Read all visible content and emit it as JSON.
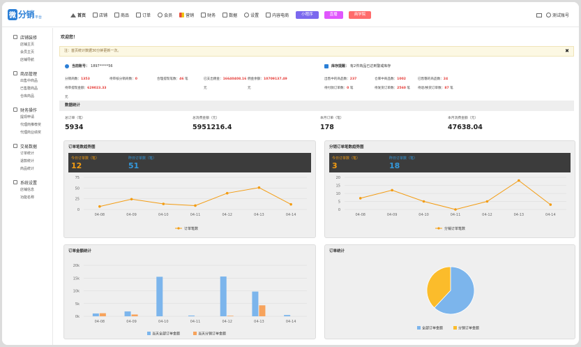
{
  "app": {
    "logo_badge": "微",
    "logo_text": "分销",
    "logo_sub": "平台"
  },
  "nav": {
    "items": [
      {
        "label": "首页",
        "icon": "home-icon",
        "active": true
      },
      {
        "label": "店铺",
        "icon": "store-icon"
      },
      {
        "label": "商品",
        "icon": "goods-icon"
      },
      {
        "label": "订单",
        "icon": "order-icon"
      },
      {
        "label": "会员",
        "icon": "member-icon"
      },
      {
        "label": "营销",
        "icon": "marketing-icon"
      },
      {
        "label": "财务",
        "icon": "finance-icon"
      },
      {
        "label": "数据",
        "icon": "data-icon"
      },
      {
        "label": "设置",
        "icon": "settings-icon"
      },
      {
        "label": "内容电商",
        "icon": "content-icon"
      }
    ],
    "pills": [
      {
        "label": "小程序",
        "color": "#7b68ee"
      },
      {
        "label": "直播",
        "color": "#e056fd"
      },
      {
        "label": "商学院",
        "color": "#ff6b6b"
      }
    ]
  },
  "header": {
    "account": "测试账号"
  },
  "sidebar": [
    {
      "title": "店铺装修",
      "icon": "brush-icon",
      "items": [
        "店铺主页",
        "会员主页",
        "店铺导航"
      ]
    },
    {
      "title": "商品管理",
      "icon": "goods-icon",
      "items": [
        "出售中商品",
        "已售罄商品",
        "仓库商品"
      ]
    },
    {
      "title": "财务操作",
      "icon": "wallet-icon",
      "items": [
        "提现申请",
        "代理商推荐奖",
        "代理商业绩奖"
      ]
    },
    {
      "title": "交易数据",
      "icon": "chart-icon",
      "items": [
        "订单统计",
        "退款统计",
        "商品统计"
      ]
    },
    {
      "title": "系统设置",
      "icon": "gear-icon",
      "items": [
        "店铺信息",
        "功能名称"
      ]
    }
  ],
  "main": {
    "welcome": "欢迎您！",
    "notice": "注：首页统计数据30分钟更新一次。",
    "account_label": "当前账号：",
    "account_value": "1897*****56",
    "stock_label": "库存提醒：",
    "stock_text": "有2件商品已达到警戒库存",
    "left_kv": [
      {
        "label": "分销商数：",
        "value": "1353"
      },
      {
        "label": "待审核分销商数：",
        "value": "0"
      },
      {
        "label": "合理提现笔数：",
        "value": "46",
        "suffix": " 笔"
      },
      {
        "label": "已支出佣金：",
        "value": "16640408.16"
      },
      {
        "label": "佣金余额：",
        "value": "10709137.49"
      },
      {
        "label": "待审提现金额：",
        "value": "629023.33"
      },
      {
        "label": "元",
        "value": ""
      },
      {
        "label": "元",
        "value": ""
      },
      {
        "label": "元",
        "value": ""
      }
    ],
    "right_kv": [
      {
        "label": "出售中的商品数：",
        "value": "237"
      },
      {
        "label": "仓库中商品数：",
        "value": "1002"
      },
      {
        "label": "已售罄的商品数：",
        "value": "24"
      },
      {
        "label": "待付款订单数：",
        "value": "0",
        "suffix": " 笔"
      },
      {
        "label": "待发货订单数：",
        "value": "2560",
        "suffix": " 笔"
      },
      {
        "label": "待退/换货订单数：",
        "value": "87",
        "suffix": " 笔"
      }
    ],
    "stats_title": "数据统计",
    "stats": [
      {
        "label": "总订单（笔）",
        "value": "5934"
      },
      {
        "label": "总消费金额（元）",
        "value": "5951216.4"
      },
      {
        "label": "本月订单（笔）",
        "value": "178"
      },
      {
        "label": "本月消费金额（元）",
        "value": "47638.04"
      }
    ]
  },
  "panels": {
    "orders_trend": {
      "title": "订单笔数趋势图",
      "today_label": "今日订单数（笔）",
      "today": "12",
      "yest_label": "昨日订单数（笔）",
      "yest": "51"
    },
    "dist_trend": {
      "title": "分销订单笔数趋势图",
      "today_label": "今日订单数（笔）",
      "today": "3",
      "yest_label": "昨日订单数（笔）",
      "yest": "18"
    },
    "amount": {
      "title": "订单金额统计"
    },
    "order_stats": {
      "title": "订单统计"
    }
  },
  "chart_data": [
    {
      "type": "line",
      "categories": [
        "04-08",
        "04-09",
        "04-10",
        "04-11",
        "04-12",
        "04-13",
        "04-14"
      ],
      "series": [
        {
          "name": "订单笔数",
          "values": [
            7,
            24,
            13,
            9,
            38,
            51,
            12
          ],
          "color": "#f39c12"
        }
      ],
      "yticks": [
        "0",
        "25",
        "50",
        "75"
      ],
      "ylim": [
        0,
        75
      ]
    },
    {
      "type": "line",
      "categories": [
        "04-08",
        "04-09",
        "04-10",
        "04-11",
        "04-12",
        "04-13",
        "04-14"
      ],
      "series": [
        {
          "name": "分销订单笔数",
          "values": [
            7,
            12,
            5,
            0,
            5,
            18,
            3
          ],
          "color": "#f39c12"
        }
      ],
      "yticks": [
        "0",
        "5",
        "10",
        "15",
        "20"
      ],
      "ylim": [
        0,
        20
      ]
    },
    {
      "type": "bar",
      "categories": [
        "04-08",
        "04-09",
        "04-10",
        "04-11",
        "04-12",
        "04-13",
        "04-14"
      ],
      "series": [
        {
          "name": "当天全部订单金额",
          "values": [
            1100,
            1900,
            15500,
            300,
            15600,
            9700,
            500
          ],
          "color": "#7cb5ec"
        },
        {
          "name": "当天分销订单金额",
          "values": [
            1200,
            700,
            0,
            0,
            200,
            4300,
            0
          ],
          "color": "#f7a35c"
        }
      ],
      "yticks": [
        "0k",
        "5k",
        "10k",
        "15k",
        "20k"
      ],
      "ylim": [
        0,
        20000
      ]
    },
    {
      "type": "pie",
      "series": [
        {
          "name": "全部订单金额",
          "value": 62,
          "color": "#7cb5ec"
        },
        {
          "name": "分销订单金额",
          "value": 38,
          "color": "#fbbc2b"
        }
      ]
    }
  ]
}
